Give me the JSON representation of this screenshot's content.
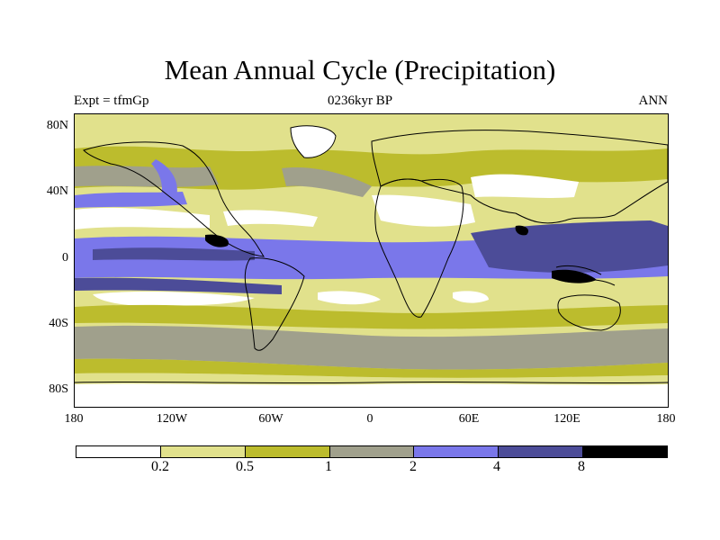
{
  "title": "Mean Annual Cycle (Precipitation)",
  "subtitle_left": "Expt = tfmGp",
  "subtitle_center": "0236kyr BP",
  "subtitle_right": "ANN",
  "map": {
    "lat_ticks": [
      "80N",
      "40N",
      "0",
      "40S",
      "80S"
    ],
    "lon_ticks": [
      "180",
      "120W",
      "60W",
      "0",
      "60E",
      "120E",
      "180"
    ]
  },
  "colorbar": {
    "labels": [
      "0.2",
      "0.5",
      "1",
      "2",
      "4",
      "8"
    ],
    "colors": [
      "#ffffff",
      "#e1e18c",
      "#bcbc2d",
      "#a0a08c",
      "#7a77ea",
      "#4c4c98",
      "#000000"
    ]
  },
  "colors": {
    "white": "#ffffff",
    "pale_yellow": "#e1e18c",
    "olive": "#bcbc2d",
    "gray": "#a0a08c",
    "blue": "#7a77ea",
    "dark_blue": "#4c4c98",
    "black": "#000000"
  }
}
